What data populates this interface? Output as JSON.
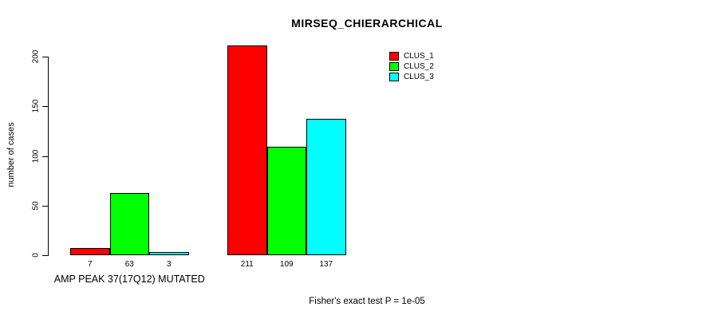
{
  "title": "MIRSEQ_CHIERARCHICAL",
  "chart_data": {
    "type": "bar",
    "title": "MIRSEQ_CHIERARCHICAL",
    "xlabel": "",
    "ylabel": "number of cases",
    "ylim": [
      0,
      200
    ],
    "yticks": [
      0,
      50,
      100,
      150,
      200
    ],
    "grid": false,
    "legend_position": "top-right",
    "bar_value_labels": true,
    "categories": [
      "AMP PEAK 37(17Q12) MUTATED",
      ""
    ],
    "series": [
      {
        "name": "CLUS_1",
        "color": "#FF0000",
        "values": [
          7,
          211
        ]
      },
      {
        "name": "CLUS_2",
        "color": "#00FF00",
        "values": [
          63,
          109
        ]
      },
      {
        "name": "CLUS_3",
        "color": "#00FFFF",
        "values": [
          3,
          137
        ]
      }
    ],
    "annotation": "Fisher's exact test P = 1e-05"
  },
  "colors": {
    "background": "#FFFFFF",
    "axis": "#000000",
    "bar_border": "#000000",
    "text": "#000000"
  }
}
